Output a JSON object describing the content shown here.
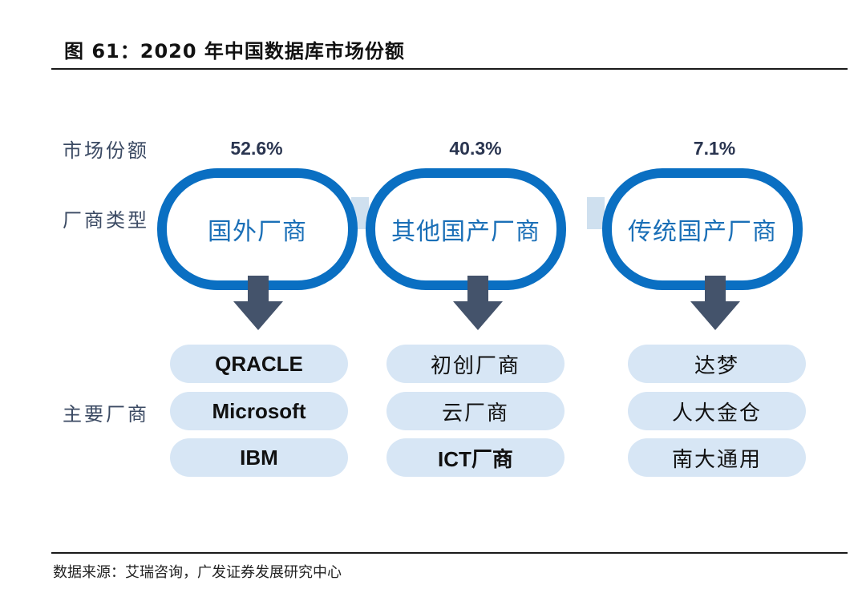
{
  "title": "图 61：2020 年中国数据库市场份额",
  "row_labels": {
    "market_share": "市场份额",
    "vendor_type": "厂商类型",
    "major_vendors": "主要厂商"
  },
  "columns": [
    {
      "share": "52.6%",
      "type": "国外厂商",
      "vendors": [
        "QRACLE",
        "Microsoft",
        "IBM"
      ]
    },
    {
      "share": "40.3%",
      "type": "其他国产厂商",
      "vendors": [
        "初创厂商",
        "云厂商",
        "ICT厂商"
      ]
    },
    {
      "share": "7.1%",
      "type": "传统国产厂商",
      "vendors": [
        "达梦",
        "人大金仓",
        "南大通用"
      ]
    }
  ],
  "source": "数据来源：艾瑞咨询，广发证券发展研究中心",
  "colors": {
    "ring": "#0a6fc2",
    "ring_text": "#1a6fb7",
    "arrow": "#44536b",
    "pill": "#d7e6f5",
    "connector": "#cfe0ef",
    "label": "#3b4a63"
  }
}
